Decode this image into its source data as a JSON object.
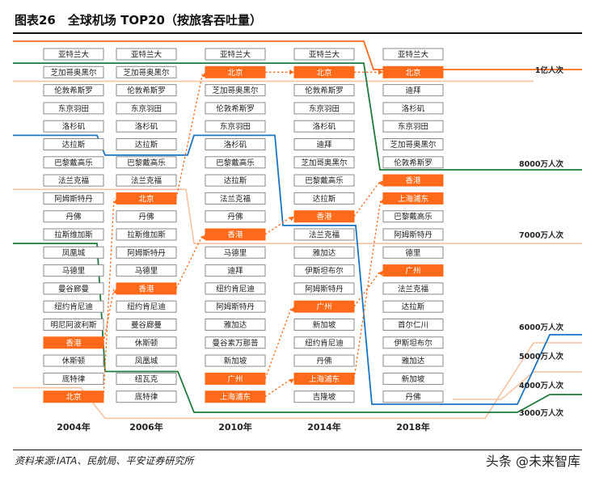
{
  "title": "图表26　全球机场 TOP20（按旅客吞吐量）",
  "source": "资料来源:IATA、民航局、平安证券研究所",
  "watermark": "头条 @未来智库",
  "colors": {
    "highlight": "#ff6a1a",
    "light_orange": "#f7c2a0",
    "blue": "#1a74c4",
    "green": "#1e7a3c",
    "box_border": "#8a8a8a"
  },
  "chart_data": {
    "type": "table",
    "years": [
      "2004年",
      "2006年",
      "2010年",
      "2014年",
      "2018年"
    ],
    "rankings": [
      [
        "亚特兰大",
        "芝加哥奥黑尔",
        "伦敦希斯罗",
        "东京羽田",
        "洛杉矶",
        "达拉斯",
        "巴黎戴高乐",
        "法兰克福",
        "阿姆斯特丹",
        "丹佛",
        "拉斯维加斯",
        "凤凰城",
        "马德里",
        "曼谷廊曼",
        "纽约肯尼迪",
        "明尼阿波利斯",
        "香港",
        "休斯顿",
        "底特律",
        "北京"
      ],
      [
        "亚特兰大",
        "芝加哥奥黑尔",
        "伦敦希斯罗",
        "东京羽田",
        "洛杉矶",
        "达拉斯",
        "巴黎戴高乐",
        "法兰克福",
        "北京",
        "丹佛",
        "拉斯维加斯",
        "阿姆斯特丹",
        "马德里",
        "香港",
        "纽约肯尼迪",
        "曼谷廊曼",
        "休斯顿",
        "凤凰城",
        "纽瓦克",
        "底特律"
      ],
      [
        "亚特兰大",
        "北京",
        "芝加哥奥黑尔",
        "伦敦希斯罗",
        "东京羽田",
        "洛杉矶",
        "巴黎戴高乐",
        "达拉斯",
        "法兰克福",
        "丹佛",
        "香港",
        "马德里",
        "迪拜",
        "纽约肯尼迪",
        "阿姆斯特丹",
        "雅加达",
        "曼谷素万那普",
        "新加坡",
        "广州",
        "上海浦东"
      ],
      [
        "亚特兰大",
        "北京",
        "伦敦希斯罗",
        "东京羽田",
        "洛杉矶",
        "迪拜",
        "芝加哥奥黑尔",
        "巴黎戴高乐",
        "达拉斯",
        "香港",
        "法兰克福",
        "雅加达",
        "伊斯坦布尔",
        "阿姆斯特丹",
        "广州",
        "新加坡",
        "纽约肯尼迪",
        "丹佛",
        "上海浦东",
        "吉隆坡"
      ],
      [
        "亚特兰大",
        "北京",
        "迪拜",
        "洛杉矶",
        "东京羽田",
        "芝加哥奥黑尔",
        "伦敦希斯罗",
        "香港",
        "上海浦东",
        "巴黎戴高乐",
        "阿姆斯特丹",
        "德里",
        "广州",
        "法兰克福",
        "达拉斯",
        "首尔仁川",
        "伊斯坦布尔",
        "雅加达",
        "新加坡",
        "丹佛"
      ]
    ],
    "highlighted": [
      "北京",
      "香港",
      "广州",
      "上海浦东"
    ],
    "tiers": [
      "1亿人次",
      "8000万人次",
      "7000万人次",
      "6000万人次",
      "5000万人次",
      "4000万人次",
      "3000万人次"
    ]
  }
}
